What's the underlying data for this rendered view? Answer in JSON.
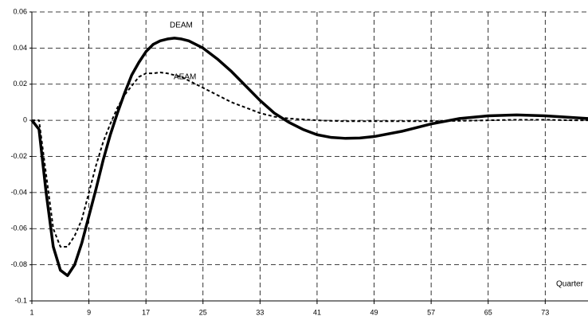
{
  "chart_data": {
    "type": "line",
    "x_label": "Quarter",
    "x": [
      1,
      2,
      3,
      4,
      5,
      6,
      7,
      8,
      9,
      10,
      11,
      12,
      13,
      14,
      15,
      16,
      17,
      18,
      19,
      20,
      21,
      22,
      23,
      25,
      27,
      29,
      31,
      33,
      35,
      37,
      39,
      41,
      43,
      45,
      47,
      49,
      53,
      57,
      61,
      65,
      69,
      73,
      77,
      79
    ],
    "series": [
      {
        "name": "DEAM",
        "color": "#000000",
        "line_style": "solid",
        "values": [
          0,
          -0.005,
          -0.04,
          -0.07,
          -0.083,
          -0.086,
          -0.08,
          -0.068,
          -0.053,
          -0.038,
          -0.022,
          -0.008,
          0.004,
          0.015,
          0.025,
          0.032,
          0.038,
          0.042,
          0.044,
          0.045,
          0.0455,
          0.045,
          0.044,
          0.04,
          0.034,
          0.027,
          0.019,
          0.011,
          0.004,
          -0.001,
          -0.005,
          -0.008,
          -0.0095,
          -0.01,
          -0.0098,
          -0.009,
          -0.006,
          -0.002,
          0.001,
          0.0025,
          0.003,
          0.0025,
          0.0015,
          0.001
        ]
      },
      {
        "name": "AEAM",
        "color": "#000000",
        "line_style": "dashed",
        "values": [
          0,
          0,
          -0.03,
          -0.06,
          -0.07,
          -0.07,
          -0.064,
          -0.055,
          -0.04,
          -0.025,
          -0.012,
          -0.002,
          0.007,
          0.014,
          0.019,
          0.024,
          0.026,
          0.026,
          0.0265,
          0.026,
          0.025,
          0.024,
          0.022,
          0.018,
          0.014,
          0.01,
          0.007,
          0.004,
          0.002,
          0.001,
          0.0005,
          0,
          -0.0003,
          -0.0005,
          -0.0005,
          -0.0005,
          -0.0005,
          -0.0005,
          -0.0003,
          0,
          0.0003,
          0.0003,
          0,
          0
        ]
      }
    ],
    "xlim": [
      1,
      79
    ],
    "xticks": [
      1,
      9,
      17,
      25,
      33,
      41,
      49,
      57,
      65,
      73
    ],
    "ylim": [
      -0.1,
      0.06
    ],
    "yticks": [
      0.06,
      0.04,
      0.02,
      0,
      -0.02,
      -0.04,
      -0.06,
      -0.08,
      -0.1
    ],
    "grid": true
  }
}
